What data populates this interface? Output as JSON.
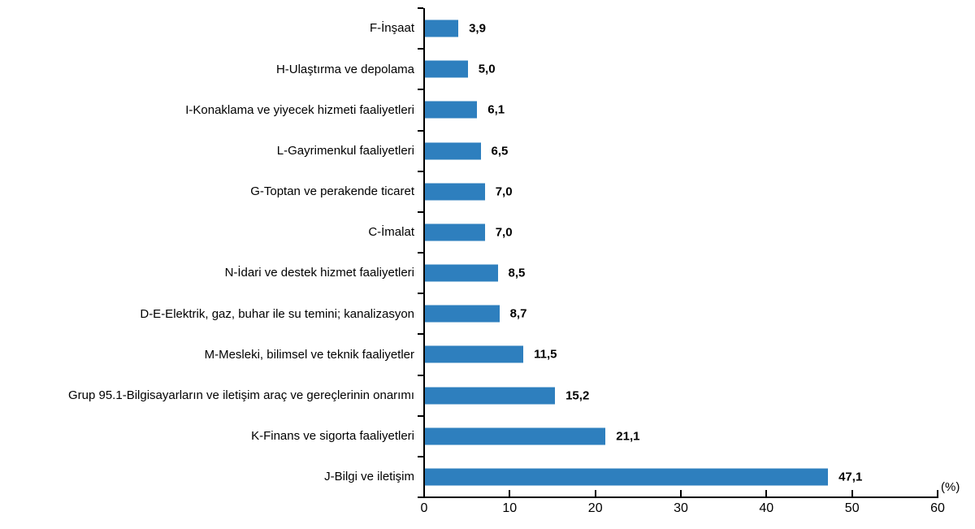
{
  "chart_data": {
    "type": "bar",
    "orientation": "horizontal",
    "title": "",
    "xlabel": "(%)",
    "ylabel": "",
    "xlim": [
      0,
      60
    ],
    "x_ticks": [
      0,
      10,
      20,
      30,
      40,
      50,
      60
    ],
    "grid": false,
    "legend": "none",
    "unit_label": "(%)",
    "bar_color": "#2E7FBE",
    "axis_color": "#000000",
    "categories": [
      "F-İnşaat",
      "H-Ulaştırma ve depolama",
      "I-Konaklama ve yiyecek hizmeti faaliyetleri",
      "L-Gayrimenkul faaliyetleri",
      "G-Toptan ve perakende ticaret",
      "C-İmalat",
      "N-İdari ve destek hizmet faaliyetleri",
      "D-E-Elektrik, gaz, buhar ile su temini; kanalizasyon",
      "M-Mesleki, bilimsel ve teknik faaliyetler",
      "Grup 95.1-Bilgisayarların ve iletişim araç ve gereçlerinin onarımı",
      "K-Finans ve sigorta faaliyetleri",
      "J-Bilgi ve iletişim"
    ],
    "values": [
      3.9,
      5.0,
      6.1,
      6.5,
      7.0,
      7.0,
      8.5,
      8.7,
      11.5,
      15.2,
      21.1,
      47.1
    ],
    "value_labels": [
      "3,9",
      "5,0",
      "6,1",
      "6,5",
      "7,0",
      "7,0",
      "8,5",
      "8,7",
      "11,5",
      "15,2",
      "21,1",
      "47,1"
    ]
  }
}
